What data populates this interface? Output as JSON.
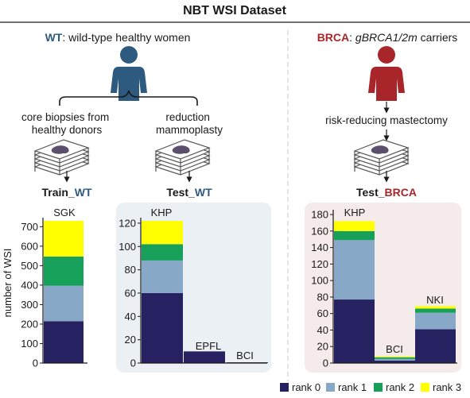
{
  "title": "NBT WSI Dataset",
  "wt": {
    "abbr": "WT",
    "desc": ": wild-type healthy women",
    "branch_left": [
      "core biopsies from",
      "healthy donors"
    ],
    "branch_right": [
      "reduction",
      "mammoplasty"
    ],
    "train_prefix": "Train_",
    "train_suffix": "WT",
    "test_prefix": "Test_",
    "test_suffix": "WT"
  },
  "brca": {
    "abbr": "BRCA",
    "desc_prefix": ": ",
    "desc_italic": "gBRCA1/2m",
    "desc_suffix": " carriers",
    "procedure": "risk-reducing mastectomy",
    "test_prefix": "Test_",
    "test_suffix": "BRCA"
  },
  "colors": {
    "wt": "#2e5a80",
    "brca": "#a8262a",
    "rank0": "#262262",
    "rank1": "#87a8c6",
    "rank2": "#16a05a",
    "rank3": "#ffff00",
    "panel_wt": "#eaf0f4",
    "panel_brca": "#f6ebeb"
  },
  "legend": [
    "rank 0",
    "rank 1",
    "rank 2",
    "rank 3"
  ],
  "chart_data": [
    {
      "type": "bar",
      "stacked": true,
      "ylabel": "number of WSI",
      "ylim": [
        0,
        730
      ],
      "yticks": [
        0,
        100,
        200,
        300,
        400,
        500,
        600,
        700
      ],
      "categories": [
        "SGK"
      ],
      "series": [
        {
          "name": "rank 0",
          "values": [
            215
          ]
        },
        {
          "name": "rank 1",
          "values": [
            182
          ]
        },
        {
          "name": "rank 2",
          "values": [
            150
          ]
        },
        {
          "name": "rank 3",
          "values": [
            183
          ]
        }
      ]
    },
    {
      "type": "bar",
      "stacked": true,
      "ylim": [
        0,
        122
      ],
      "yticks": [
        0,
        20,
        40,
        60,
        80,
        100,
        120
      ],
      "categories": [
        "KHP",
        "EPFL",
        "BCI"
      ],
      "series": [
        {
          "name": "rank 0",
          "values": [
            60,
            10,
            0.6
          ]
        },
        {
          "name": "rank 1",
          "values": [
            28,
            0,
            0
          ]
        },
        {
          "name": "rank 2",
          "values": [
            14,
            0,
            0
          ]
        },
        {
          "name": "rank 3",
          "values": [
            20,
            0,
            0
          ]
        }
      ]
    },
    {
      "type": "bar",
      "stacked": true,
      "ylim": [
        0,
        182
      ],
      "yticks": [
        0,
        20,
        40,
        60,
        80,
        100,
        120,
        140,
        160,
        180
      ],
      "categories": [
        "KHP",
        "BCI",
        "NKI"
      ],
      "series": [
        {
          "name": "rank 0",
          "values": [
            77,
            3,
            41
          ]
        },
        {
          "name": "rank 1",
          "values": [
            72,
            2,
            20
          ]
        },
        {
          "name": "rank 2",
          "values": [
            11,
            2,
            5
          ]
        },
        {
          "name": "rank 3",
          "values": [
            12,
            1,
            3
          ]
        }
      ]
    }
  ]
}
